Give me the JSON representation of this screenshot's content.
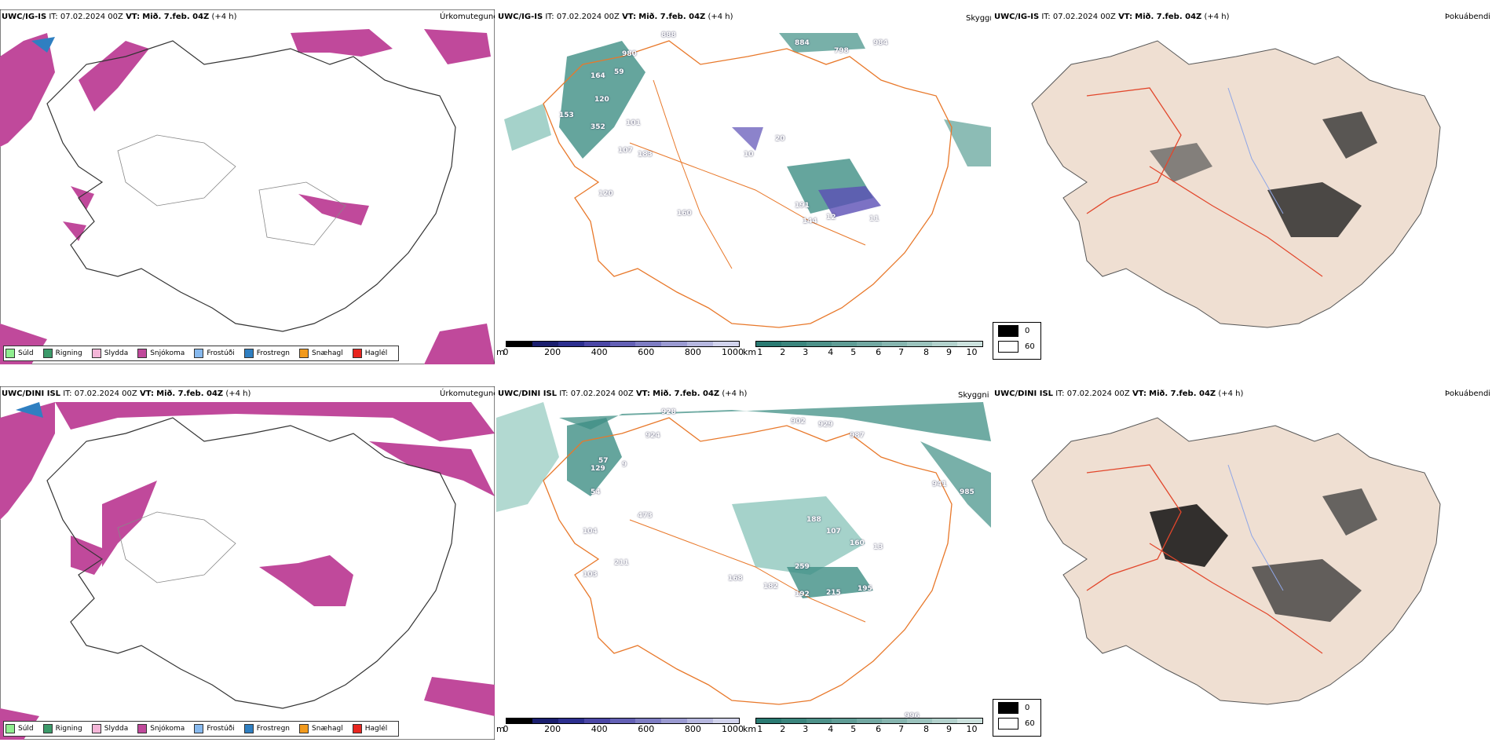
{
  "panels": {
    "ig": {
      "precip": {
        "model": "UWC/IG-IS",
        "it": "IT: 07.02.2024 00Z",
        "vt_label": "VT:",
        "vt": "Mið. 7.feb. 04Z",
        "lead": "(+4 h)",
        "title": "Úrkomutegund"
      },
      "vis": {
        "model": "UWC/IG-IS",
        "it": "IT: 07.02.2024 00Z",
        "vt_label": "VT:",
        "vt": "Mið. 7.feb. 04Z",
        "lead": "(+4 h)",
        "title": "Skyggni"
      },
      "fog": {
        "model": "UWC/IG-IS",
        "it": "IT: 07.02.2024 00Z",
        "vt_label": "VT:",
        "vt": "Mið. 7.feb. 04Z",
        "lead": "(+4 h)",
        "title": "Þokuábendi"
      }
    },
    "dini": {
      "precip": {
        "model": "UWC/DINI ISL",
        "it": "IT: 07.02.2024 00Z",
        "vt_label": "VT:",
        "vt": "Mið. 7.feb. 04Z",
        "lead": "(+4 h)",
        "title": "Úrkomutegund"
      },
      "vis": {
        "model": "UWC/DINI ISL",
        "it": "IT: 07.02.2024 00Z",
        "vt_label": "VT:",
        "vt": "Mið. 7.feb. 04Z",
        "lead": "(+4 h)",
        "title": "Skyggni"
      },
      "fog": {
        "model": "UWC/DINI ISL",
        "it": "IT: 07.02.2024 00Z",
        "vt_label": "VT:",
        "vt": "Mið. 7.feb. 04Z",
        "lead": "(+4 h)",
        "title": "Þokuábendi"
      }
    }
  },
  "precip_legend": [
    {
      "label": "Súld",
      "color": "#90ee90"
    },
    {
      "label": "Rigning",
      "color": "#3c9a6a"
    },
    {
      "label": "Slydda",
      "color": "#f4b6d8"
    },
    {
      "label": "Snjókoma",
      "color": "#c0499b"
    },
    {
      "label": "Frostúði",
      "color": "#87b9ee"
    },
    {
      "label": "Frostregn",
      "color": "#2f7fc1"
    },
    {
      "label": "Snæhagl",
      "color": "#f29a1c"
    },
    {
      "label": "Haglél",
      "color": "#e8251f"
    }
  ],
  "vis_scale_m": {
    "unit": "m",
    "ticks": [
      "0",
      "200",
      "400",
      "600",
      "800",
      "1000"
    ]
  },
  "vis_scale_km": {
    "unit": "km",
    "ticks": [
      "1",
      "2",
      "3",
      "4",
      "5",
      "6",
      "7",
      "8",
      "9",
      "10"
    ]
  },
  "fog_legend": {
    "high": "0",
    "low": "60"
  },
  "ig_vis_labels": [
    "888",
    "980",
    "884",
    "798",
    "984",
    "164",
    "59",
    "120",
    "153",
    "352",
    "101",
    "107",
    "183",
    "10",
    "20",
    "191",
    "144",
    "12",
    "11",
    "160",
    "120"
  ],
  "dini_vis_labels": [
    "928",
    "924",
    "902",
    "929",
    "987",
    "129",
    "57",
    "9",
    "104",
    "473",
    "211",
    "103",
    "168",
    "182",
    "192",
    "215",
    "195",
    "259",
    "188",
    "107",
    "160",
    "13",
    "941",
    "985",
    "996",
    "54"
  ]
}
